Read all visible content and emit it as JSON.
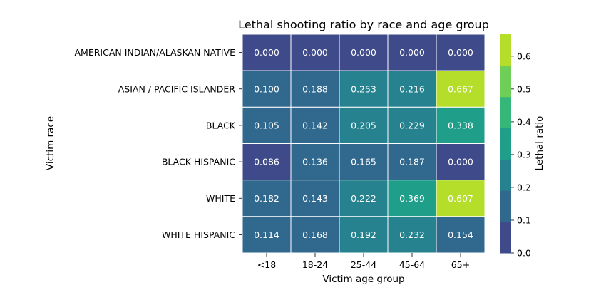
{
  "chart_data": {
    "type": "heatmap",
    "title": "Lethal shooting ratio by race and age group",
    "xlabel": "Victim age group",
    "ylabel": "Victim race",
    "x_categories": [
      "<18",
      "18-24",
      "25-44",
      "45-64",
      "65+"
    ],
    "y_categories": [
      "AMERICAN INDIAN/ALASKAN NATIVE",
      "ASIAN / PACIFIC ISLANDER",
      "BLACK",
      "BLACK HISPANIC",
      "WHITE",
      "WHITE HISPANIC"
    ],
    "values": [
      [
        0.0,
        0.0,
        0.0,
        0.0,
        0.0
      ],
      [
        0.1,
        0.188,
        0.253,
        0.216,
        0.667
      ],
      [
        0.105,
        0.142,
        0.205,
        0.229,
        0.338
      ],
      [
        0.086,
        0.136,
        0.165,
        0.187,
        0.0
      ],
      [
        0.182,
        0.143,
        0.222,
        0.369,
        0.607
      ],
      [
        0.114,
        0.168,
        0.192,
        0.232,
        0.154
      ]
    ],
    "value_labels": [
      [
        "0.000",
        "0.000",
        "0.000",
        "0.000",
        "0.000"
      ],
      [
        "0.100",
        "0.188",
        "0.253",
        "0.216",
        "0.667"
      ],
      [
        "0.105",
        "0.142",
        "0.205",
        "0.229",
        "0.338"
      ],
      [
        "0.086",
        "0.136",
        "0.165",
        "0.187",
        "0.000"
      ],
      [
        "0.182",
        "0.143",
        "0.222",
        "0.369",
        "0.607"
      ],
      [
        "0.114",
        "0.168",
        "0.192",
        "0.232",
        "0.154"
      ]
    ],
    "colorbar": {
      "label": "Lethal ratio",
      "vmin": 0.0,
      "vmax": 0.667,
      "ticks": [
        0.0,
        0.1,
        0.2,
        0.3,
        0.4,
        0.5,
        0.6
      ],
      "tick_labels": [
        "0.0",
        "0.1",
        "0.2",
        "0.3",
        "0.4",
        "0.5",
        "0.6"
      ],
      "colors": [
        "#3e4a89",
        "#31688e",
        "#26828e",
        "#1f9e89",
        "#35b779",
        "#6ece58",
        "#b5de2b"
      ]
    },
    "grid": false,
    "legend": "none"
  }
}
